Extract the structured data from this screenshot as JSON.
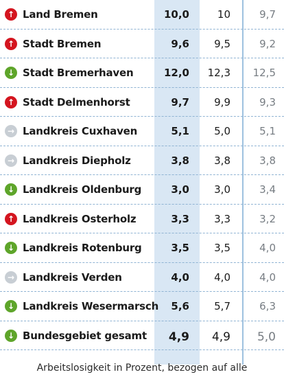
{
  "rows": [
    {
      "name": "Land Bremen",
      "trend": "up",
      "v1": "10,0",
      "v2": "10",
      "v3": "9,7"
    },
    {
      "name": "Stadt Bremen",
      "trend": "up",
      "v1": "9,6",
      "v2": "9,5",
      "v3": "9,2"
    },
    {
      "name": "Stadt Bremerhaven",
      "trend": "down",
      "v1": "12,0",
      "v2": "12,3",
      "v3": "12,5"
    },
    {
      "name": "Stadt Delmenhorst",
      "trend": "up",
      "v1": "9,7",
      "v2": "9,9",
      "v3": "9,3"
    },
    {
      "name": "Landkreis Cuxhaven",
      "trend": "flat",
      "v1": "5,1",
      "v2": "5,0",
      "v3": "5,1"
    },
    {
      "name": "Landkreis Diepholz",
      "trend": "flat",
      "v1": "3,8",
      "v2": "3,8",
      "v3": "3,8"
    },
    {
      "name": "Landkreis Oldenburg",
      "trend": "down",
      "v1": "3,0",
      "v2": "3,0",
      "v3": "3,4"
    },
    {
      "name": "Landkreis Osterholz",
      "trend": "up",
      "v1": "3,3",
      "v2": "3,3",
      "v3": "3,2"
    },
    {
      "name": "Landkreis Rotenburg",
      "trend": "down",
      "v1": "3,5",
      "v2": "3,5",
      "v3": "4,0"
    },
    {
      "name": "Landkreis Verden",
      "trend": "flat",
      "v1": "4,0",
      "v2": "4,0",
      "v3": "4,0"
    },
    {
      "name": "Landkreis Wesermarsch",
      "trend": "down",
      "v1": "5,6",
      "v2": "5,7",
      "v3": "6,3"
    },
    {
      "name": "Bundesgebiet gesamt",
      "trend": "down",
      "v1": "4,9",
      "v2": "4,9",
      "v3": "5,0"
    }
  ],
  "caption": "Arbeitslosigkeit in Prozent, bezogen auf alle",
  "colors": {
    "up": "#d4151f",
    "down": "#5ea52a",
    "flat": "#c8ced4",
    "highlight": "#d9e7f4",
    "divider": "#9ec1df"
  }
}
